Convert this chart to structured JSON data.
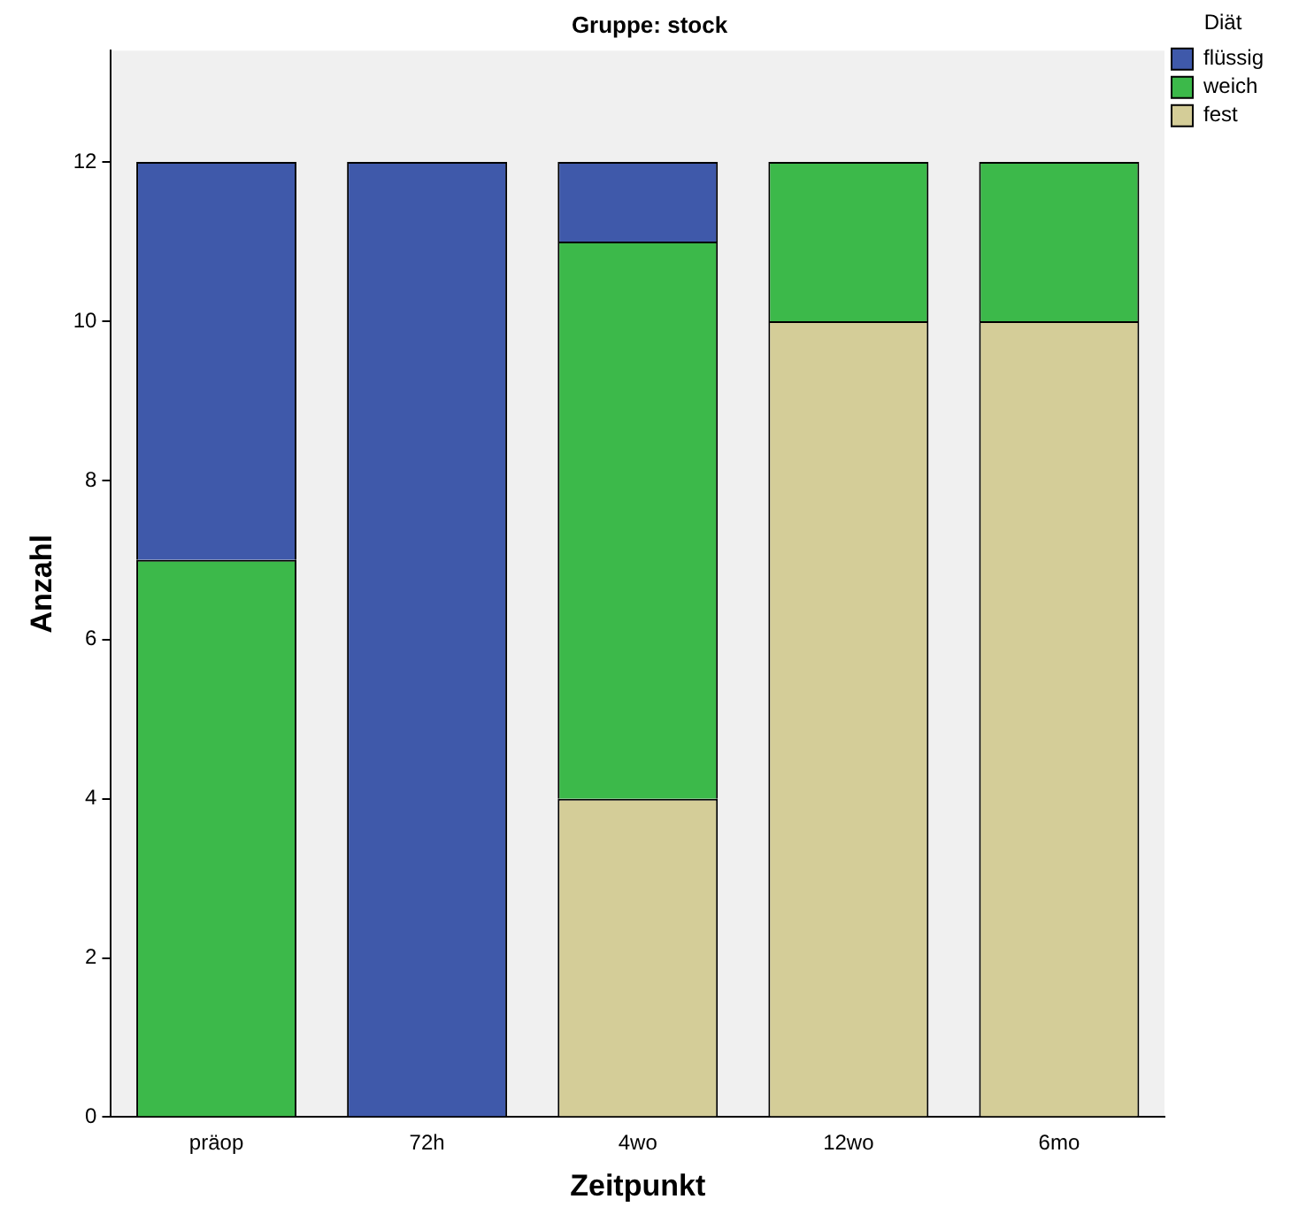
{
  "chart_data": {
    "type": "bar",
    "title": "Gruppe: stock",
    "xlabel": "Zeitpunkt",
    "ylabel": "Anzahl",
    "legend_title": "Diät",
    "categories": [
      "präop",
      "72h",
      "4wo",
      "12wo",
      "6mo"
    ],
    "stacked": true,
    "series": [
      {
        "name": "fest",
        "color": "#d4cd98",
        "values": [
          0,
          0,
          4,
          10,
          10
        ]
      },
      {
        "name": "weich",
        "color": "#3cb94a",
        "values": [
          7,
          0,
          7,
          2,
          2
        ]
      },
      {
        "name": "flüssig",
        "color": "#3f59aa",
        "values": [
          5,
          12,
          1,
          0,
          0
        ]
      }
    ],
    "ylim": [
      0,
      13.4
    ],
    "yticks": [
      0,
      2,
      4,
      6,
      8,
      10,
      12
    ],
    "grid": false,
    "legend": "top right"
  }
}
